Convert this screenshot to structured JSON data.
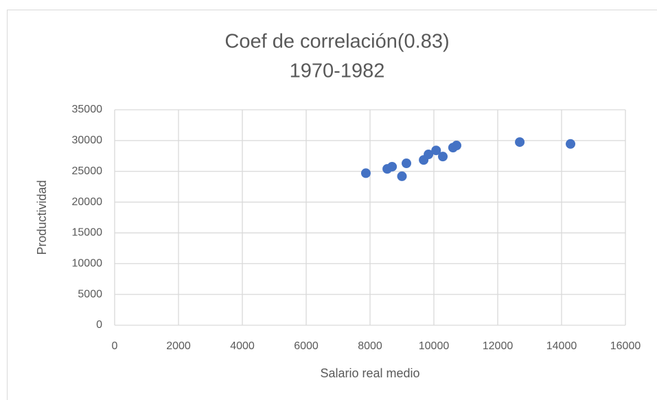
{
  "chart_data": {
    "type": "scatter",
    "title": "Coef de correlación(0.83)",
    "subtitle": "1970-1982",
    "x_label": "Salario real medio",
    "y_label": "Productividad",
    "color": "#4472c4",
    "grid": true,
    "x": [
      7870,
      8540,
      8690,
      9000,
      9140,
      9680,
      9830,
      10070,
      10280,
      10600,
      10710,
      12690,
      14280
    ],
    "values": [
      24700,
      25400,
      25750,
      24200,
      26300,
      26850,
      27750,
      28400,
      27400,
      28850,
      29200,
      29750,
      29450
    ],
    "xlim": [
      0,
      16000
    ],
    "ylim": [
      0,
      35000
    ],
    "xticks": [
      0,
      2000,
      4000,
      6000,
      8000,
      10000,
      12000,
      14000,
      16000
    ],
    "yticks": [
      0,
      5000,
      10000,
      15000,
      20000,
      25000,
      30000,
      35000
    ]
  }
}
